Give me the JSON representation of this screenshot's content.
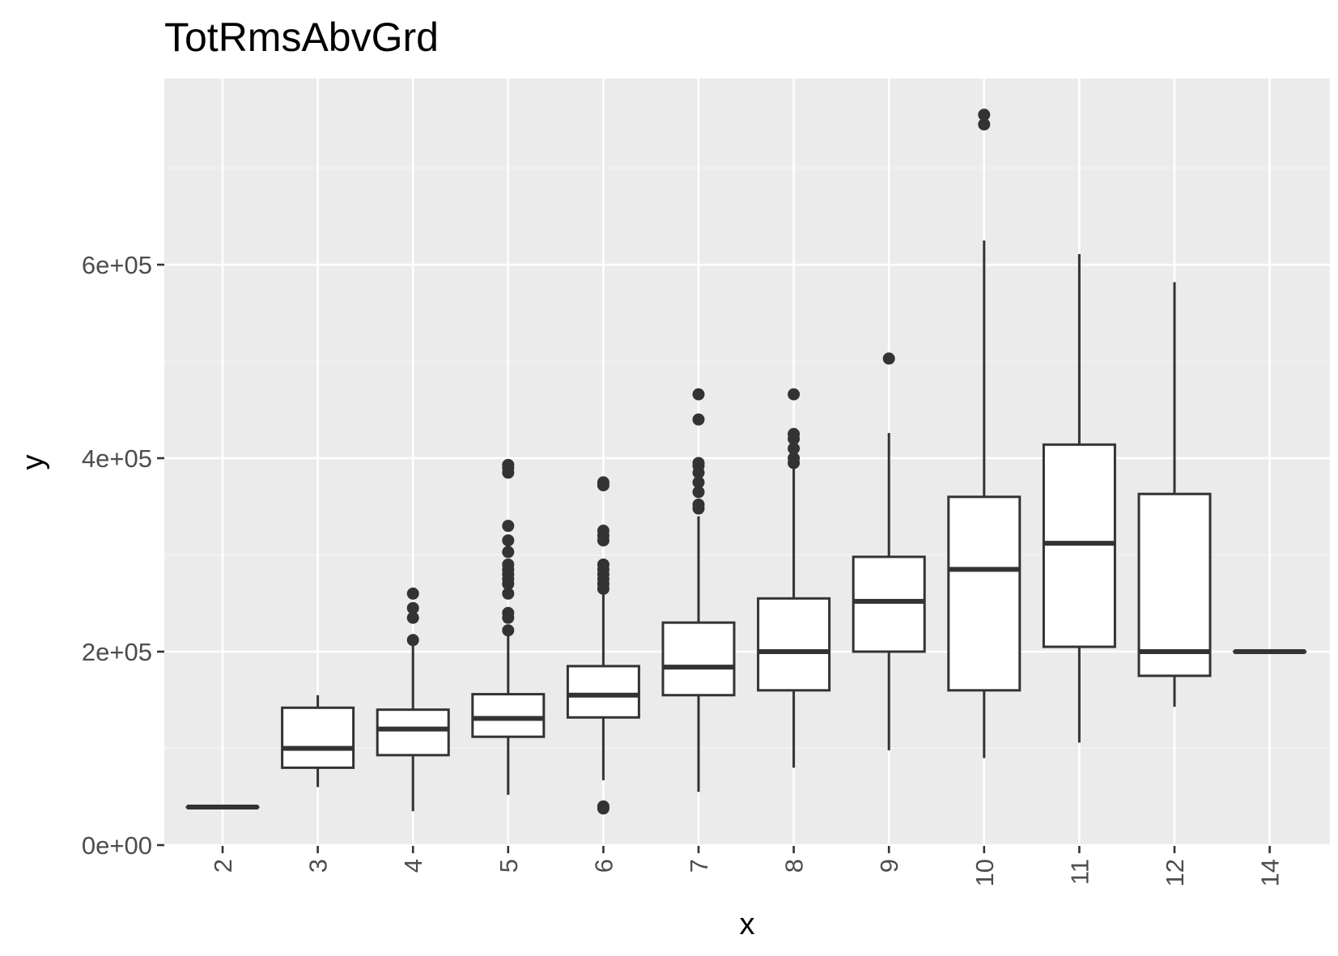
{
  "chart_data": {
    "type": "boxplot",
    "title": "TotRmsAbvGrd",
    "xlabel": "x",
    "ylabel": "y",
    "categories": [
      "2",
      "3",
      "4",
      "5",
      "6",
      "7",
      "8",
      "9",
      "10",
      "11",
      "12",
      "14"
    ],
    "ylim": [
      0,
      780000
    ],
    "yticks": [
      0,
      200000,
      400000,
      600000
    ],
    "ytick_labels": [
      "0e+00",
      "2e+05",
      "4e+05",
      "6e+05"
    ],
    "grid": true,
    "boxes": [
      {
        "x": "2",
        "whisker_low": 39300,
        "q1": 39300,
        "median": 39300,
        "q3": 39300,
        "whisker_high": 39300,
        "outliers": []
      },
      {
        "x": "3",
        "whisker_low": 60000,
        "q1": 80000,
        "median": 100000,
        "q3": 142000,
        "whisker_high": 155000,
        "outliers": []
      },
      {
        "x": "4",
        "whisker_low": 35000,
        "q1": 93000,
        "median": 120000,
        "q3": 140000,
        "whisker_high": 208000,
        "outliers": [
          212000,
          235000,
          245000,
          260000
        ]
      },
      {
        "x": "5",
        "whisker_low": 52000,
        "q1": 112000,
        "median": 131000,
        "q3": 156000,
        "whisker_high": 220000,
        "outliers": [
          222000,
          235000,
          240000,
          260000,
          270000,
          275000,
          280000,
          285000,
          290000,
          303000,
          315000,
          330000,
          385000,
          390000,
          393000
        ]
      },
      {
        "x": "6",
        "whisker_low": 67000,
        "q1": 132000,
        "median": 155000,
        "q3": 185000,
        "whisker_high": 262000,
        "outliers": [
          37900,
          40000,
          265000,
          270000,
          275000,
          280000,
          285000,
          290000,
          315000,
          320000,
          325000,
          372000,
          375000
        ]
      },
      {
        "x": "7",
        "whisker_low": 55000,
        "q1": 155000,
        "median": 184000,
        "q3": 230000,
        "whisker_high": 340000,
        "outliers": [
          348000,
          352000,
          365000,
          375000,
          385000,
          392000,
          395000,
          440000,
          466000
        ]
      },
      {
        "x": "8",
        "whisker_low": 80000,
        "q1": 160000,
        "median": 200000,
        "q3": 255000,
        "whisker_high": 390000,
        "outliers": [
          395000,
          400000,
          410000,
          420000,
          425000,
          466000
        ]
      },
      {
        "x": "9",
        "whisker_low": 98000,
        "q1": 200000,
        "median": 252000,
        "q3": 298000,
        "whisker_high": 426000,
        "outliers": [
          503000
        ]
      },
      {
        "x": "10",
        "whisker_low": 90000,
        "q1": 160000,
        "median": 285000,
        "q3": 360000,
        "whisker_high": 625000,
        "outliers": [
          745000,
          755000
        ]
      },
      {
        "x": "11",
        "whisker_low": 106000,
        "q1": 205000,
        "median": 312000,
        "q3": 414000,
        "whisker_high": 611000,
        "outliers": []
      },
      {
        "x": "12",
        "whisker_low": 143000,
        "q1": 175000,
        "median": 200000,
        "q3": 363000,
        "whisker_high": 582000,
        "outliers": []
      },
      {
        "x": "14",
        "whisker_low": 200000,
        "q1": 200000,
        "median": 200000,
        "q3": 200000,
        "whisker_high": 200000,
        "outliers": []
      }
    ],
    "colors": {
      "panel_background": "#ebebeb",
      "grid_major": "#ffffff",
      "grid_minor": "#f5f5f5",
      "box_fill": "#ffffff",
      "box_stroke": "#333333",
      "tick_label": "#4d4d4d",
      "tick_mark": "#333333"
    }
  }
}
